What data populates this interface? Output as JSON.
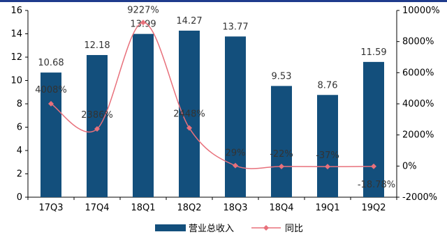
{
  "chart_data": {
    "type": "bar",
    "categories": [
      "17Q3",
      "17Q4",
      "18Q1",
      "18Q2",
      "18Q3",
      "18Q4",
      "19Q1",
      "19Q2"
    ],
    "series": [
      {
        "name": "营业总收入",
        "kind": "bar",
        "axis": "left",
        "color": "#134f7c",
        "values": [
          10.68,
          12.18,
          13.99,
          14.27,
          13.77,
          9.53,
          8.76,
          11.59
        ],
        "labels": [
          "10.68",
          "12.18",
          "13.99",
          "14.27",
          "13.77",
          "9.53",
          "8.76",
          "11.59"
        ]
      },
      {
        "name": "同比",
        "kind": "line",
        "axis": "right",
        "color": "#e8707b",
        "values": [
          4008,
          2386,
          9227,
          2448,
          29,
          -22,
          -37,
          -18.78
        ],
        "labels": [
          "4008%",
          "2386%",
          "9227%",
          "2448%",
          "29%",
          "-22%",
          "-37%",
          "-18.78%"
        ]
      }
    ],
    "y_left": {
      "min": 0,
      "max": 16,
      "step": 2,
      "ticks": [
        "0",
        "2",
        "4",
        "6",
        "8",
        "10",
        "12",
        "14",
        "16"
      ]
    },
    "y_right": {
      "min": -2000,
      "max": 10000,
      "step": 2000,
      "ticks": [
        "-2000%",
        "0%",
        "2000%",
        "4000%",
        "6000%",
        "8000%",
        "10000%"
      ]
    },
    "grid": false,
    "legend_position": "bottom",
    "title": "",
    "xlabel": "",
    "ylabel": ""
  }
}
